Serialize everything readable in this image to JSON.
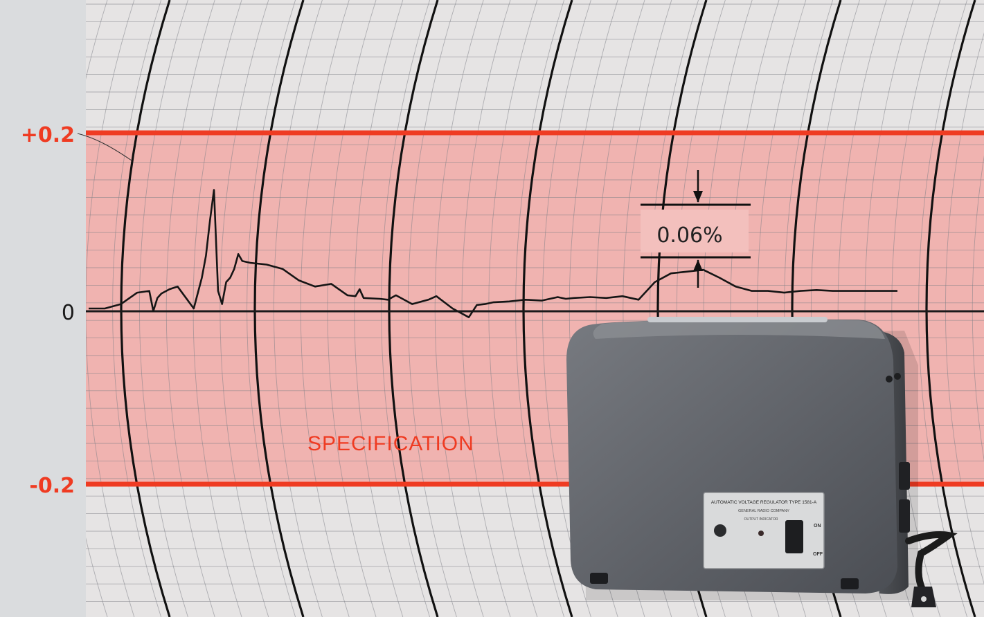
{
  "colors": {
    "background": "#dadcde",
    "paper": "#e6e4e4",
    "grid": "#7d7f86",
    "spec_band": "#f0b3b0",
    "spec_line": "#ef3b22",
    "trace": "#151515",
    "device_body": "#6c6f74"
  },
  "chart": {
    "y_labels": {
      "plus": "+0.2",
      "zero": "0",
      "minus": "-0.2"
    },
    "band_label": "SPECIFICATION",
    "measurement_label": "0.06%"
  },
  "chart_data": {
    "type": "line",
    "ylim": [
      -0.2,
      0.2
    ],
    "yticks": [
      "+0.2",
      "0",
      "-0.2"
    ],
    "specification_band": [
      -0.2,
      0.2
    ],
    "annotation": "0.06%",
    "annotation_span": [
      0.03,
      0.09
    ],
    "series": [
      {
        "x": [
          0,
          4,
          8,
          12,
          15,
          16,
          17,
          18,
          20,
          22,
          26,
          28,
          29,
          30,
          31,
          32,
          33,
          34,
          35,
          36,
          37,
          38,
          40,
          44,
          48,
          52,
          56,
          60,
          64,
          66,
          67,
          68,
          72,
          74,
          76,
          80,
          84,
          86,
          90,
          94,
          96,
          98,
          100,
          104,
          108,
          112,
          116,
          118,
          120,
          124,
          128,
          132,
          136,
          140,
          144,
          148,
          152,
          156,
          160,
          164,
          168,
          172,
          176,
          180,
          184,
          188,
          192,
          196,
          200
        ],
        "y": [
          0,
          0,
          0.005,
          0.018,
          0.02,
          -0.003,
          0.012,
          0.017,
          0.022,
          0.025,
          0,
          0.035,
          0.06,
          0.1,
          0.135,
          0.02,
          0.005,
          0.03,
          0.035,
          0.045,
          0.062,
          0.054,
          0.052,
          0.05,
          0.045,
          0.032,
          0.025,
          0.028,
          0.015,
          0.014,
          0.022,
          0.012,
          0.011,
          0.01,
          0.015,
          0.005,
          0.01,
          0.014,
          0.0,
          -0.01,
          0.004,
          0.005,
          0.007,
          0.008,
          0.01,
          0.009,
          0.013,
          0.011,
          0.012,
          0.013,
          0.012,
          0.014,
          0.01,
          0.03,
          0.04,
          0.042,
          0.044,
          0.035,
          0.025,
          0.02,
          0.02,
          0.018,
          0.02,
          0.021,
          0.02,
          0.02,
          0.02,
          0.02,
          0.02
        ]
      }
    ]
  },
  "device": {
    "nameplate": "AUTOMATIC VOLTAGE REGULATOR TYPE 1581-A",
    "brand": "GENERAL RADIO COMPANY",
    "indicator_label": "OUTPUT INDICATOR",
    "switch_on": "ON",
    "switch_off": "OFF"
  }
}
